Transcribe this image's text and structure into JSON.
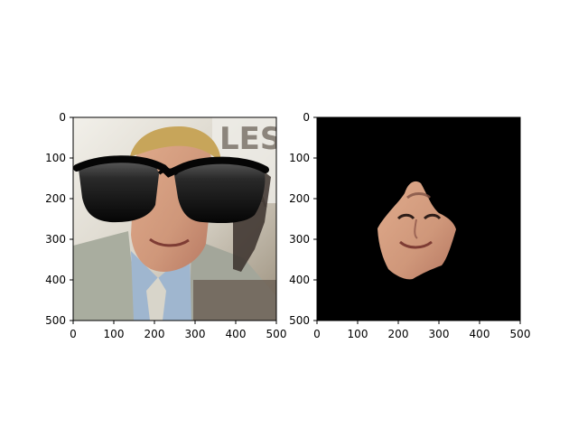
{
  "chart_data": [
    {
      "type": "image",
      "subplot": "left",
      "content": "portrait with overlaid sunglasses",
      "xlim": [
        0,
        500
      ],
      "ylim": [
        500,
        0
      ],
      "xticks": [
        0,
        100,
        200,
        300,
        400,
        500
      ],
      "yticks": [
        0,
        100,
        200,
        300,
        400,
        500
      ],
      "xtick_labels": [
        "0",
        "100",
        "200",
        "300",
        "400",
        "500"
      ],
      "ytick_labels": [
        "0",
        "100",
        "200",
        "300",
        "400",
        "500"
      ],
      "title": "",
      "xlabel": "",
      "ylabel": "",
      "colors": {
        "background_wall": "#d7d2c6",
        "jacket": "#a9ad9f",
        "shirt": "#9fb6cf",
        "skin": "#d19a7c",
        "hair": "#c7a55a",
        "sunglasses": "#171717",
        "sunglasses_frame": "#050505"
      }
    },
    {
      "type": "image",
      "subplot": "right",
      "content": "face mask isolated on black background",
      "xlim": [
        0,
        500
      ],
      "ylim": [
        500,
        0
      ],
      "xticks": [
        0,
        100,
        200,
        300,
        400,
        500
      ],
      "yticks": [
        0,
        100,
        200,
        300,
        400,
        500
      ],
      "xtick_labels": [
        "0",
        "100",
        "200",
        "300",
        "400",
        "500"
      ],
      "ytick_labels": [
        "0",
        "100",
        "200",
        "300",
        "400",
        "500"
      ],
      "title": "",
      "xlabel": "",
      "ylabel": "",
      "colors": {
        "background": "#000000",
        "skin": "#cf977a",
        "shadow": "#8c5d4a"
      }
    }
  ]
}
